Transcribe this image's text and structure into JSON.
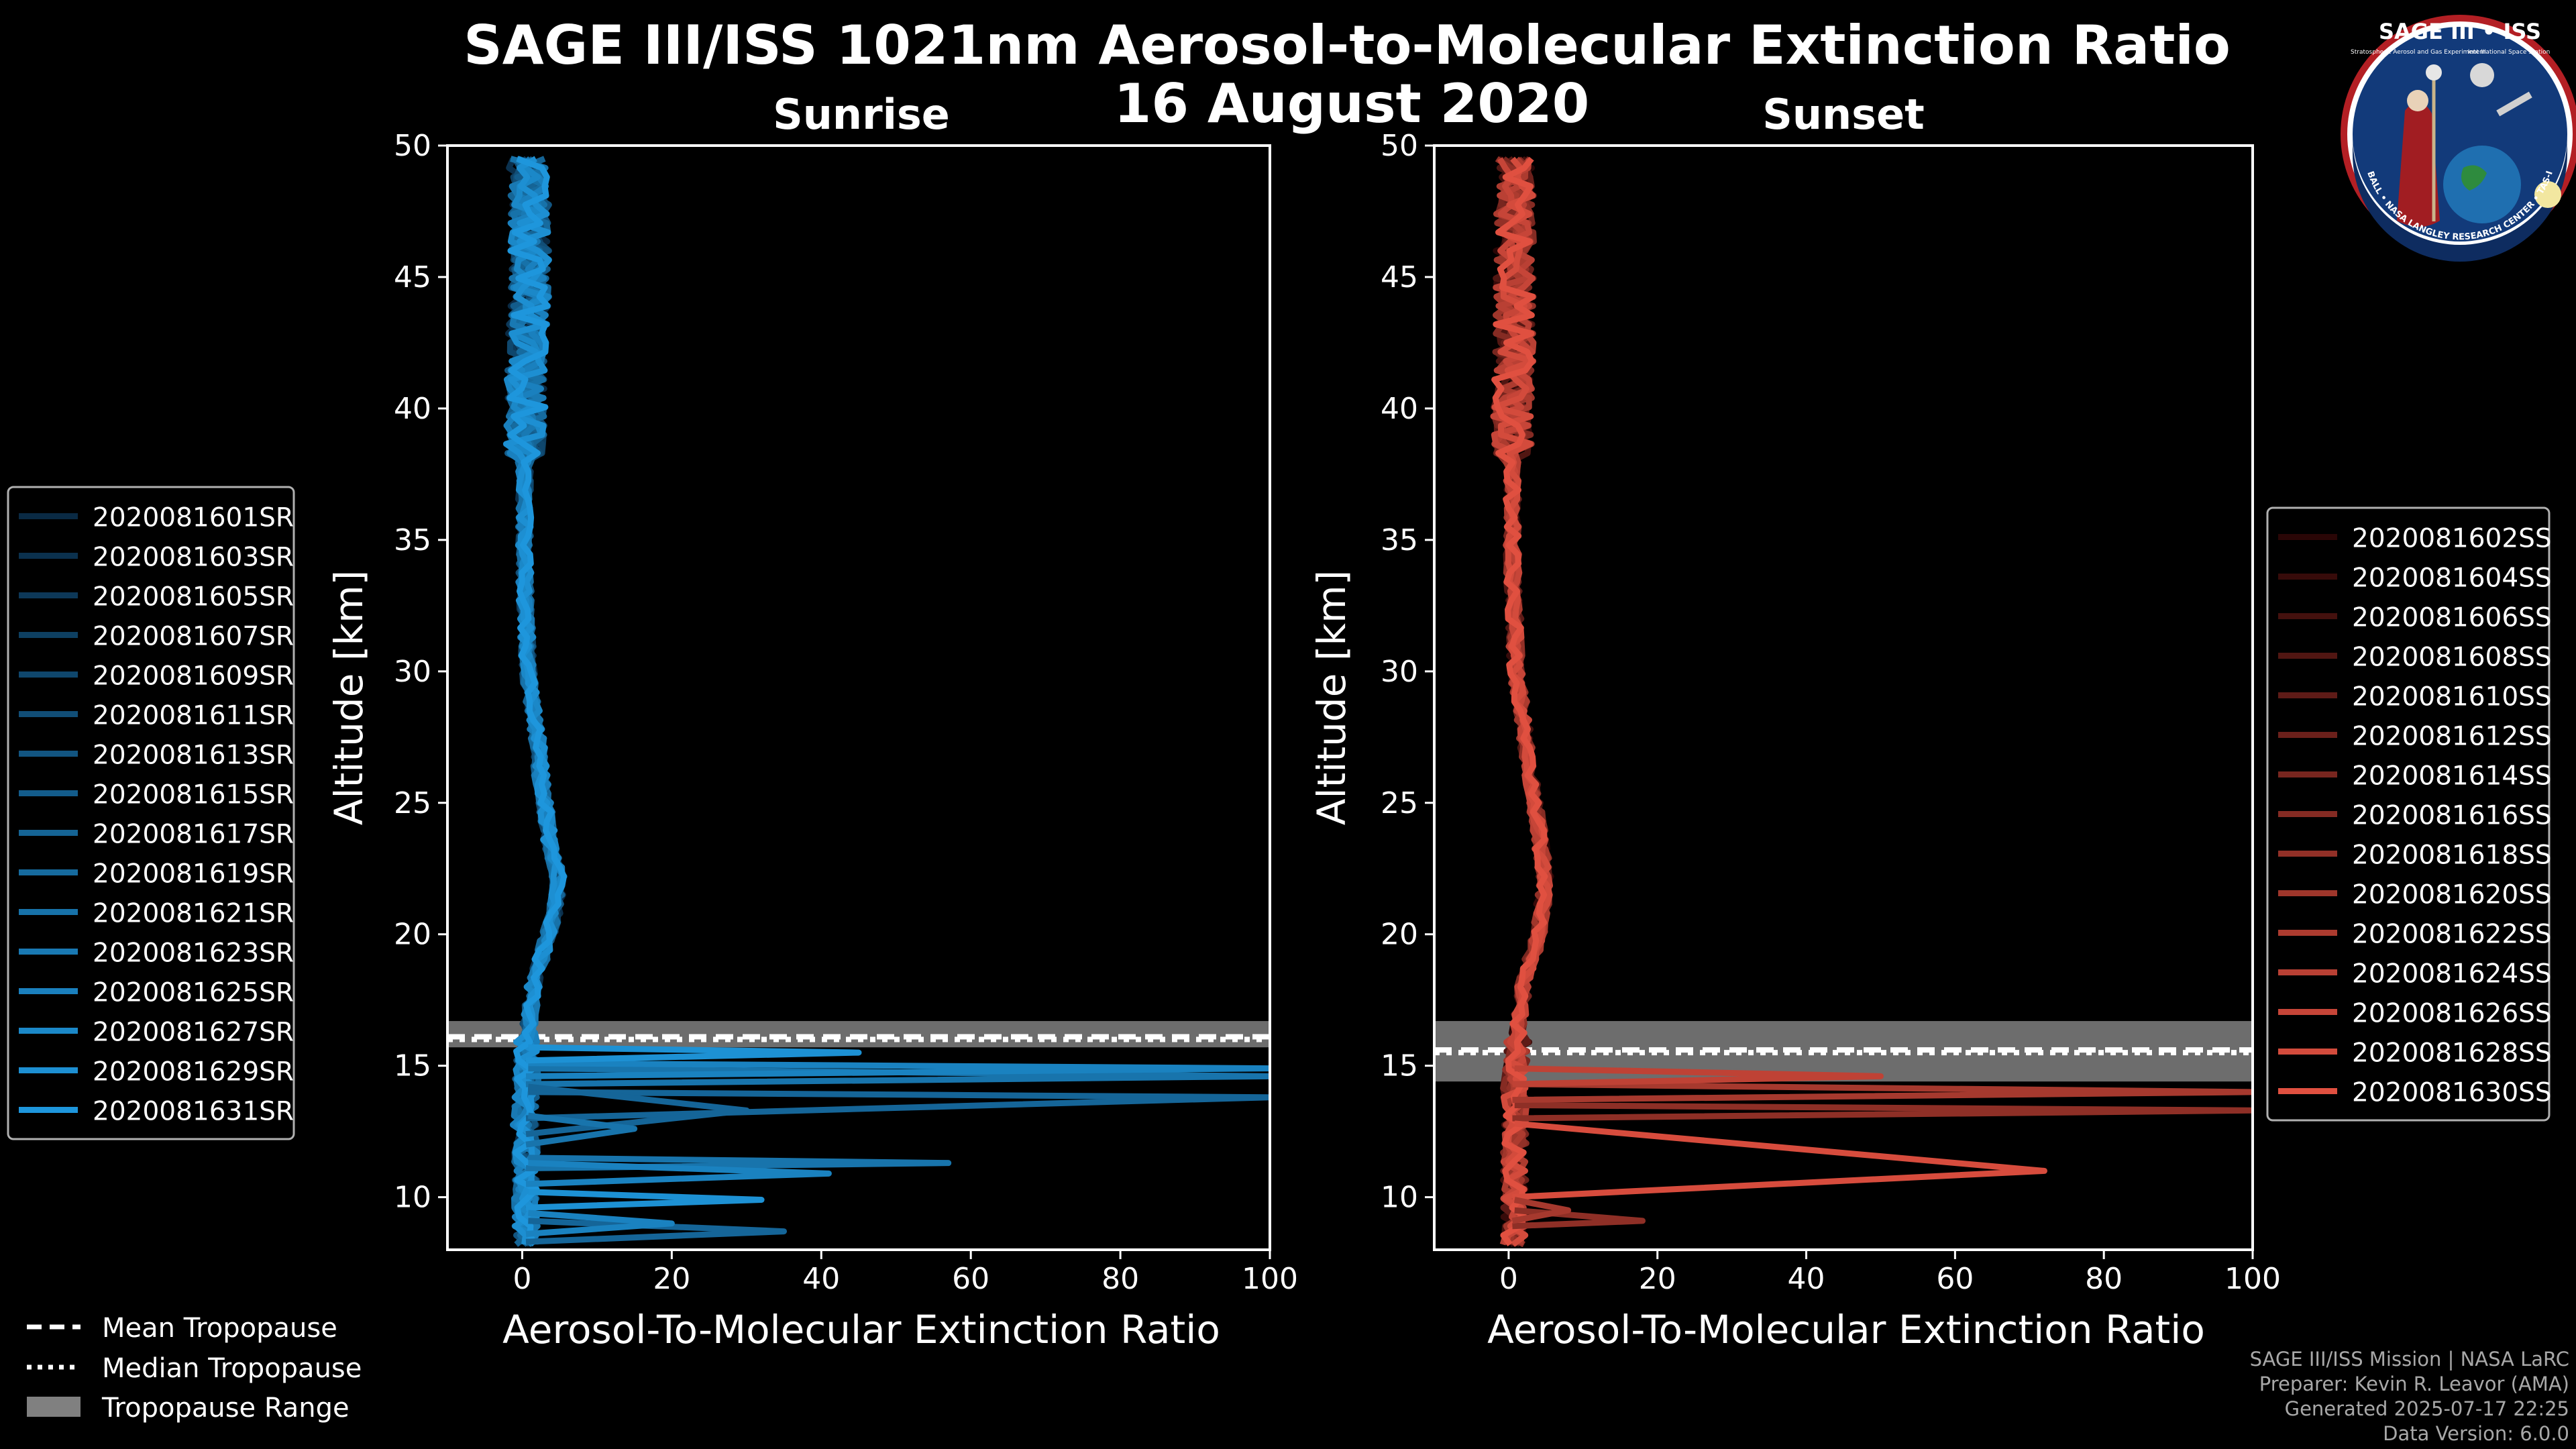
{
  "figure": {
    "title_line1": "SAGE III/ISS 1021nm Aerosol-to-Molecular Extinction Ratio",
    "title_line2": "16 August 2020"
  },
  "logo": {
    "text": "SAGE III • ISS",
    "subtitle_left": "Stratospheric Aerosol and Gas Experiment III",
    "subtitle_right": "International Space Station",
    "ring_text": "BALL • NASA LANGLEY RESEARCH CENTER • TAS-I • ESA"
  },
  "credits": [
    "SAGE III/ISS Mission | NASA LaRC",
    "Preparer: Kevin R. Leavor (AMA)",
    "Generated 2025-07-17 22:25",
    "Data Version: 6.0.0"
  ],
  "tropopause_legend": [
    {
      "label": "Mean Tropopause",
      "style": "dashed"
    },
    {
      "label": "Median Tropopause",
      "style": "dotted"
    },
    {
      "label": "Tropopause Range",
      "style": "patch"
    }
  ],
  "chart_data": [
    {
      "type": "line",
      "title": "Sunrise",
      "xlabel": "Aerosol-To-Molecular Extinction Ratio",
      "ylabel": "Altitude [km]",
      "xlim": [
        -10,
        100
      ],
      "ylim": [
        8,
        50
      ],
      "xticks": [
        0,
        20,
        40,
        60,
        80,
        100
      ],
      "yticks": [
        10,
        15,
        20,
        25,
        30,
        35,
        40,
        45,
        50
      ],
      "tropopause": {
        "mean": 16.1,
        "median": 16.0,
        "range": [
          15.7,
          16.7
        ]
      },
      "color_dark": "#0a2a44",
      "color_light": "#1e96dc",
      "series_names": [
        "2020081601SR",
        "2020081603SR",
        "2020081605SR",
        "2020081607SR",
        "2020081609SR",
        "2020081611SR",
        "2020081613SR",
        "2020081615SR",
        "2020081617SR",
        "2020081619SR",
        "2020081621SR",
        "2020081623SR",
        "2020081625SR",
        "2020081627SR",
        "2020081629SR",
        "2020081631SR"
      ],
      "profile_mean": {
        "alt": [
          8.2,
          9,
          10,
          11,
          12,
          13,
          14,
          15,
          16,
          17,
          18,
          19,
          20,
          21,
          22,
          23,
          24,
          25,
          26,
          27,
          28,
          29,
          30,
          32,
          34,
          36,
          38,
          40,
          42,
          44,
          46,
          48,
          49.6
        ],
        "ratio": [
          0.5,
          0.5,
          0.5,
          0.5,
          0.5,
          0.3,
          0.5,
          0.7,
          0.8,
          1.0,
          1.5,
          2.5,
          3.5,
          4.5,
          5.0,
          4.0,
          3.5,
          3.0,
          2.5,
          2.2,
          1.8,
          1.2,
          0.8,
          0.5,
          0.3,
          0.3,
          0.3,
          0.5,
          0.5,
          1.0,
          1.0,
          1.0,
          0.5
        ]
      },
      "excursions": [
        {
          "alt": [
            13.0,
            14.0,
            13.8
          ],
          "peak": 100
        },
        {
          "alt": [
            14.3,
            14.9,
            14.6
          ],
          "peak": 100
        },
        {
          "alt": [
            14.6,
            15.1,
            14.9
          ],
          "peak": 100
        },
        {
          "alt": [
            15.2,
            15.7,
            15.5
          ],
          "peak": 45
        },
        {
          "alt": [
            12.4,
            14.2,
            13.3
          ],
          "peak": 30
        },
        {
          "alt": [
            11.1,
            11.5,
            11.3
          ],
          "peak": 57
        },
        {
          "alt": [
            10.5,
            11.3,
            10.9
          ],
          "peak": 41
        },
        {
          "alt": [
            9.6,
            10.2,
            9.9
          ],
          "peak": 32
        },
        {
          "alt": [
            8.3,
            9.1,
            8.7
          ],
          "peak": 35
        },
        {
          "alt": [
            12.0,
            13.1,
            12.6
          ],
          "peak": 15
        },
        {
          "alt": [
            8.6,
            9.4,
            9.0
          ],
          "peak": 20
        }
      ]
    },
    {
      "type": "line",
      "title": "Sunset",
      "xlabel": "Aerosol-To-Molecular Extinction Ratio",
      "ylabel": "Altitude [km]",
      "xlim": [
        -10,
        100
      ],
      "ylim": [
        8,
        50
      ],
      "xticks": [
        0,
        20,
        40,
        60,
        80,
        100
      ],
      "yticks": [
        10,
        15,
        20,
        25,
        30,
        35,
        40,
        45,
        50
      ],
      "tropopause": {
        "mean": 15.6,
        "median": 15.5,
        "range": [
          14.4,
          16.7
        ]
      },
      "color_dark": "#2a0606",
      "color_light": "#e05040",
      "series_names": [
        "2020081602SS",
        "2020081604SS",
        "2020081606SS",
        "2020081608SS",
        "2020081610SS",
        "2020081612SS",
        "2020081614SS",
        "2020081616SS",
        "2020081618SS",
        "2020081620SS",
        "2020081622SS",
        "2020081624SS",
        "2020081626SS",
        "2020081628SS",
        "2020081630SS"
      ],
      "profile_mean": {
        "alt": [
          8.2,
          9,
          10,
          11,
          12,
          13,
          14,
          15,
          16,
          17,
          18,
          19,
          20,
          21,
          22,
          23,
          24,
          25,
          26,
          27,
          28,
          29,
          30,
          32,
          34,
          36,
          38,
          40,
          42,
          44,
          46,
          48,
          49.6
        ],
        "ratio": [
          0.8,
          0.8,
          0.8,
          0.8,
          0.8,
          0.8,
          0.8,
          1.0,
          1.2,
          1.5,
          2.0,
          3.0,
          4.0,
          4.5,
          5.0,
          4.5,
          4.0,
          3.5,
          3.0,
          2.5,
          2.0,
          1.5,
          1.0,
          0.8,
          0.5,
          0.5,
          0.5,
          0.5,
          0.8,
          0.8,
          0.8,
          1.0,
          0.5
        ]
      },
      "excursions": [
        {
          "alt": [
            13.0,
            13.5,
            13.3
          ],
          "peak": 100
        },
        {
          "alt": [
            13.7,
            14.3,
            14.0
          ],
          "peak": 100
        },
        {
          "alt": [
            14.3,
            14.9,
            14.6
          ],
          "peak": 50
        },
        {
          "alt": [
            10.0,
            12.8,
            11.0
          ],
          "peak": 72
        },
        {
          "alt": [
            8.9,
            9.5,
            9.1
          ],
          "peak": 18
        },
        {
          "alt": [
            9.1,
            9.9,
            9.5
          ],
          "peak": 8
        }
      ]
    }
  ]
}
